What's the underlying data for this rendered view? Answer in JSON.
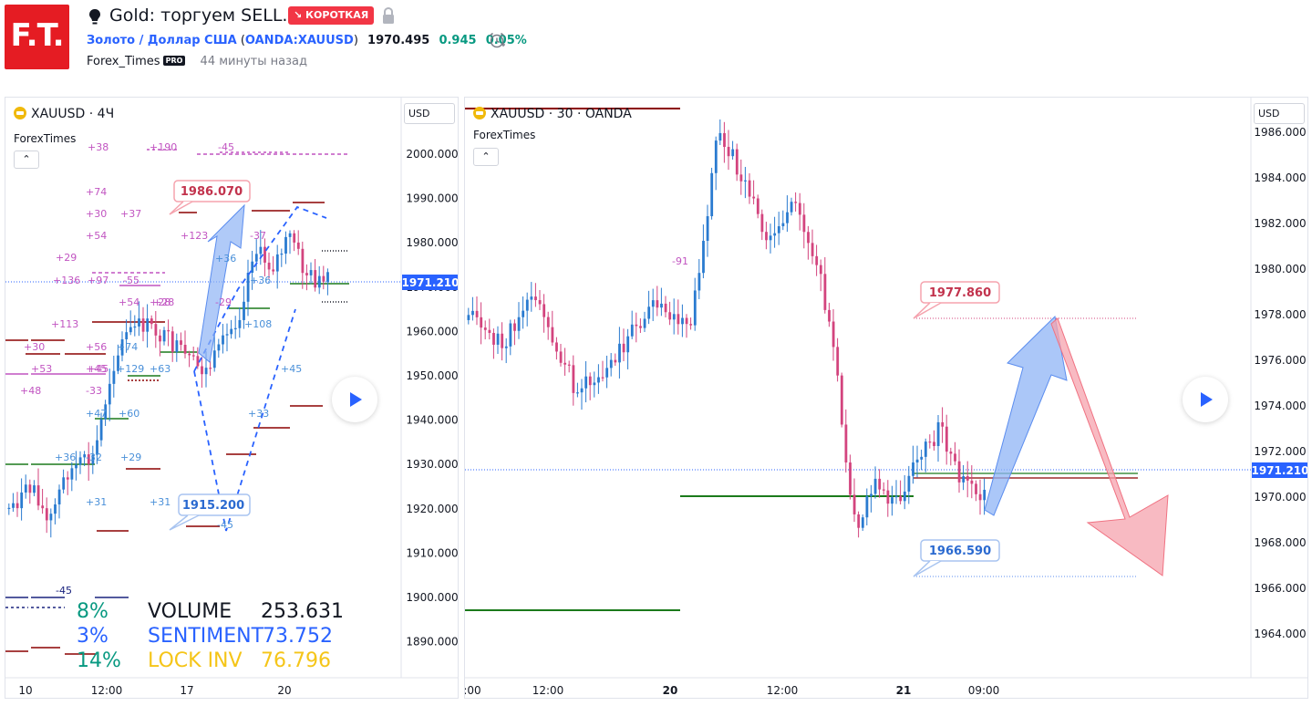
{
  "header": {
    "logo_text": "F.T.",
    "title": "Gold: торгуем SELL.",
    "badge": "↘ КОРОТКАЯ",
    "symbol_link": "Золото / Доллар США",
    "symbol_code": "OANDA:XAUUSD",
    "price": "1970.495",
    "change": "0.945",
    "change_pct": "0.05%",
    "author": "Forex_Times",
    "pro_badge": "PRO",
    "posted_ago": "44 минуты назад",
    "colors": {
      "brand": "#e51c23",
      "link": "#2962ff",
      "positive": "#089981",
      "short": "#f23645"
    },
    "icons": [
      "lightbulb-icon",
      "lock-icon",
      "alarm-clock-icon"
    ]
  },
  "left_chart": {
    "symbol": "XAUUSD · 4Ч",
    "indicator": "ForexTimes",
    "currency_button": "USD",
    "collapse_glyph": "⌃",
    "last_price_label": "1971.210",
    "price_axis_ticks": [
      "2000.000",
      "1990.000",
      "1980.000",
      "1970.000",
      "1960.000",
      "1950.000",
      "1940.000",
      "1930.000",
      "1920.000",
      "1910.000",
      "1900.000",
      "1890.000"
    ],
    "time_axis_ticks": [
      "10",
      "12:00",
      "17",
      "20"
    ],
    "callouts": {
      "top": "1986.070",
      "bottom": "1915.200"
    },
    "stats": [
      {
        "pct": "8%",
        "label": "VOLUME",
        "value": "253.631",
        "pct_color": "#089981",
        "color": "#131722"
      },
      {
        "pct": "3%",
        "label": "SENTIMENT",
        "value": "73.752",
        "pct_color": "#2962ff",
        "color": "#2962ff"
      },
      {
        "pct": "14%",
        "label": "LOCK INV",
        "value": "76.796",
        "pct_color": "#089981",
        "color": "#f5c518"
      }
    ],
    "level_labels": [
      {
        "text": "+38",
        "color": "#c154c1"
      },
      {
        "text": "+190",
        "color": "#c154c1"
      },
      {
        "text": "-45",
        "color": "#c154c1"
      },
      {
        "text": "+74",
        "color": "#c154c1"
      },
      {
        "text": "+30",
        "color": "#c154c1"
      },
      {
        "text": "+37",
        "color": "#c154c1"
      },
      {
        "text": "+54",
        "color": "#c154c1"
      },
      {
        "text": "+123",
        "color": "#c154c1"
      },
      {
        "text": "-37",
        "color": "#c154c1"
      },
      {
        "text": "+29",
        "color": "#c154c1"
      },
      {
        "text": "+136",
        "color": "#c154c1"
      },
      {
        "text": "+97",
        "color": "#c154c1"
      },
      {
        "text": "-55",
        "color": "#c154c1"
      },
      {
        "text": "+36",
        "color": "#4a90d9"
      },
      {
        "text": "+36",
        "color": "#4a90d9"
      },
      {
        "text": "+54",
        "color": "#c154c1"
      },
      {
        "text": "+28",
        "color": "#c154c1"
      },
      {
        "text": "+28",
        "color": "#c154c1"
      },
      {
        "text": "-29",
        "color": "#c154c1"
      },
      {
        "text": "+113",
        "color": "#c154c1"
      },
      {
        "text": "+108",
        "color": "#4a90d9"
      },
      {
        "text": "+30",
        "color": "#c154c1"
      },
      {
        "text": "+56",
        "color": "#c154c1"
      },
      {
        "text": "+74",
        "color": "#4a90d9"
      },
      {
        "text": "+53",
        "color": "#c154c1"
      },
      {
        "text": "+45",
        "color": "#c154c1"
      },
      {
        "text": "+45",
        "color": "#c154c1"
      },
      {
        "text": "+129",
        "color": "#4a90d9"
      },
      {
        "text": "+63",
        "color": "#4a90d9"
      },
      {
        "text": "+45",
        "color": "#4a90d9"
      },
      {
        "text": "+48",
        "color": "#c154c1"
      },
      {
        "text": "-33",
        "color": "#c154c1"
      },
      {
        "text": "+47",
        "color": "#4a90d9"
      },
      {
        "text": "+60",
        "color": "#4a90d9"
      },
      {
        "text": "+33",
        "color": "#4a90d9"
      },
      {
        "text": "+36",
        "color": "#4a90d9"
      },
      {
        "text": "-32",
        "color": "#4a90d9"
      },
      {
        "text": "+29",
        "color": "#4a90d9"
      },
      {
        "text": "+31",
        "color": "#4a90d9"
      },
      {
        "text": "+31",
        "color": "#4a90d9"
      },
      {
        "text": "-45",
        "color": "#4a90d9"
      },
      {
        "text": "-45",
        "color": "#1a237e"
      }
    ]
  },
  "right_chart": {
    "symbol": "XAUUSD · 30 · OANDA",
    "indicator": "ForexTimes",
    "currency_button": "USD",
    "collapse_glyph": "⌃",
    "last_price_label": "1971.210",
    "price_axis_ticks": [
      "1986.000",
      "1984.000",
      "1982.000",
      "1980.000",
      "1978.000",
      "1976.000",
      "1974.000",
      "1972.000",
      "1970.000",
      "1968.000",
      "1966.000",
      "1964.000"
    ],
    "time_axis_ticks": [
      ":00",
      "12:00",
      "20",
      "12:00",
      "21",
      "09:00"
    ],
    "callouts": {
      "top": "1977.860",
      "bottom": "1966.590"
    },
    "level_label": "-91"
  }
}
